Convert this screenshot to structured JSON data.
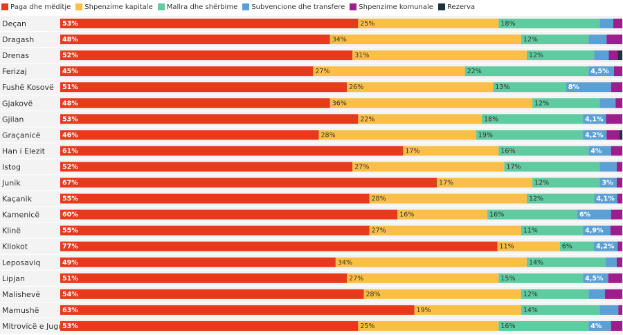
{
  "chart_data": {
    "type": "bar",
    "orientation": "horizontal",
    "stacked": "100%",
    "legend_position": "top-left",
    "series": [
      {
        "name": "Paga dhe mëditje",
        "color": "#e8391a",
        "label_color": "#ffffff"
      },
      {
        "name": "Shpenzime kapitale",
        "color": "#fbbf45",
        "label_color": "#333333"
      },
      {
        "name": "Mallra dhe shërbime",
        "color": "#5ecba1",
        "label_color": "#333333"
      },
      {
        "name": "Subvencione dhe transfere",
        "color": "#5aa0d4",
        "label_color": "#ffffff"
      },
      {
        "name": "Shpenzime komunale",
        "color": "#9c1d8c",
        "label_color": "#ffffff"
      },
      {
        "name": "Rezerva",
        "color": "#1f3240",
        "label_color": "#ffffff"
      }
    ],
    "categories": [
      "Deçan",
      "Dragash",
      "Drenas",
      "Ferizaj",
      "Fushë Kosovë",
      "Gjakovë",
      "Gjilan",
      "Graçanicë",
      "Han i Elezit",
      "Istog",
      "Junik",
      "Kaçanik",
      "Kamenicë",
      "Klinë",
      "Kllokot",
      "Leposaviq",
      "Lipjan",
      "Malishevë",
      "Mamushë",
      "Mitrovicë e Jugut"
    ],
    "rows": [
      {
        "values": [
          53,
          25,
          18,
          2.4,
          1.6,
          0
        ],
        "labels": [
          "53%",
          "25%",
          "18%",
          "",
          "",
          ""
        ]
      },
      {
        "values": [
          48,
          34,
          12,
          3.2,
          2.8,
          0
        ],
        "labels": [
          "48%",
          "34%",
          "12%",
          "",
          "",
          ""
        ]
      },
      {
        "values": [
          52,
          31,
          12,
          2.6,
          1.6,
          0.8
        ],
        "labels": [
          "52%",
          "31%",
          "12%",
          "",
          "",
          ""
        ]
      },
      {
        "values": [
          45,
          27,
          22,
          4.5,
          1.5,
          0
        ],
        "labels": [
          "45%",
          "27%",
          "22%",
          "4,5%",
          "",
          ""
        ]
      },
      {
        "values": [
          51,
          26,
          13,
          8,
          2,
          0
        ],
        "labels": [
          "51%",
          "26%",
          "13%",
          "8%",
          "",
          ""
        ]
      },
      {
        "values": [
          48,
          36,
          12,
          2.8,
          1.2,
          0
        ],
        "labels": [
          "48%",
          "36%",
          "12%",
          "",
          "",
          ""
        ]
      },
      {
        "values": [
          53,
          22,
          18,
          4.1,
          2.9,
          0
        ],
        "labels": [
          "53%",
          "22%",
          "18%",
          "4,1%",
          "",
          ""
        ]
      },
      {
        "values": [
          46,
          28,
          19,
          4.2,
          2.3,
          0.5
        ],
        "labels": [
          "46%",
          "28%",
          "19%",
          "4,2%",
          "",
          ""
        ]
      },
      {
        "values": [
          61,
          17,
          16,
          4,
          2,
          0
        ],
        "labels": [
          "61%",
          "17%",
          "16%",
          "4%",
          "",
          ""
        ]
      },
      {
        "values": [
          52,
          27,
          17,
          3,
          1,
          0
        ],
        "labels": [
          "52%",
          "27%",
          "17%",
          "",
          "",
          ""
        ]
      },
      {
        "values": [
          67,
          17,
          12,
          3,
          1,
          0
        ],
        "labels": [
          "67%",
          "17%",
          "12%",
          "3%",
          "",
          ""
        ]
      },
      {
        "values": [
          55,
          28,
          12,
          4.1,
          0.9,
          0
        ],
        "labels": [
          "55%",
          "28%",
          "12%",
          "4,1%",
          "",
          ""
        ]
      },
      {
        "values": [
          60,
          16,
          16,
          6,
          2,
          0
        ],
        "labels": [
          "60%",
          "16%",
          "16%",
          "6%",
          "",
          ""
        ]
      },
      {
        "values": [
          55,
          27,
          11,
          4.9,
          2.1,
          0
        ],
        "labels": [
          "55%",
          "27%",
          "11%",
          "4,9%",
          "",
          ""
        ]
      },
      {
        "values": [
          77,
          11,
          6,
          4.2,
          0.8,
          0
        ],
        "labels": [
          "77%",
          "11%",
          "6%",
          "4,2%",
          "",
          ""
        ]
      },
      {
        "values": [
          49,
          34,
          14,
          2,
          1,
          0
        ],
        "labels": [
          "49%",
          "34%",
          "14%",
          "",
          "",
          ""
        ]
      },
      {
        "values": [
          51,
          27,
          15,
          4.5,
          2.5,
          0
        ],
        "labels": [
          "51%",
          "27%",
          "15%",
          "4,5%",
          "",
          ""
        ]
      },
      {
        "values": [
          54,
          28,
          12,
          2.9,
          3.1,
          0
        ],
        "labels": [
          "54%",
          "28%",
          "12%",
          "",
          "",
          ""
        ]
      },
      {
        "values": [
          63,
          19,
          14,
          3.3,
          0.7,
          0
        ],
        "labels": [
          "63%",
          "19%",
          "14%",
          "",
          "",
          ""
        ]
      },
      {
        "values": [
          53,
          25,
          16,
          4,
          2,
          0
        ],
        "labels": [
          "53%",
          "25%",
          "16%",
          "4%",
          "",
          ""
        ]
      }
    ],
    "xlim": [
      0,
      100
    ]
  }
}
